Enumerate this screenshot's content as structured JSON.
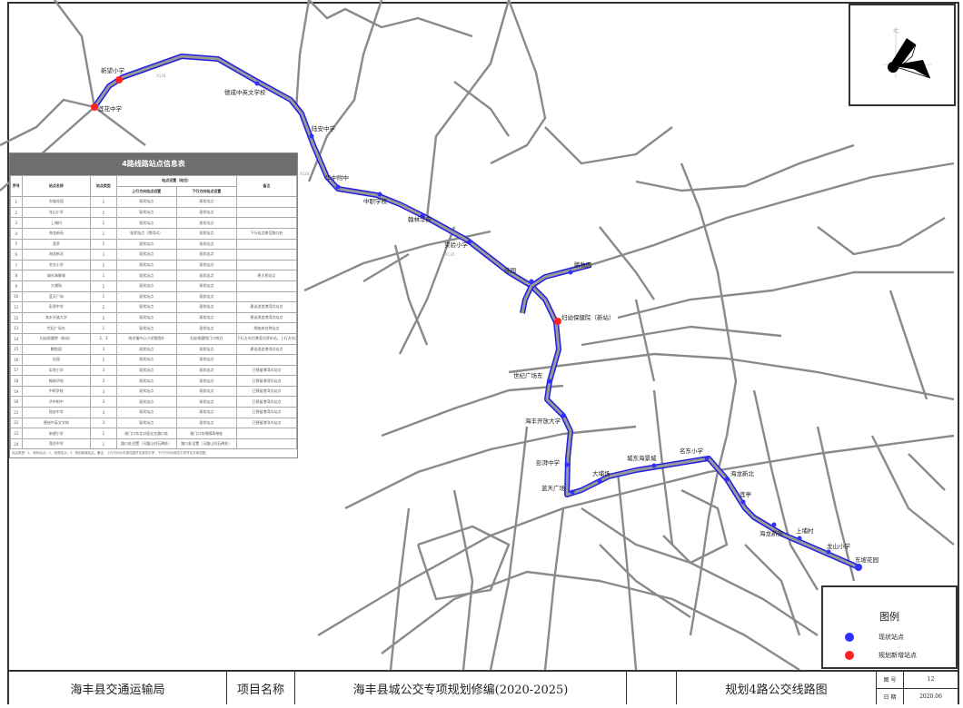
{
  "colors": {
    "route": "#2020e0",
    "existing_stop": "#3030ff",
    "new_stop": "#ff2020",
    "road": "#8a8a8a"
  },
  "compass": {
    "north_label": "北",
    "icon": "north-arrow-icon"
  },
  "table": {
    "title": "4路线路站点信息表",
    "headers": {
      "no": "序号",
      "name": "站点名称",
      "type": "站点类型",
      "setting": "站点设置（站位）",
      "up": "上行方向站点设置",
      "down": "下行方向站点设置",
      "remark": "备注"
    },
    "rows": [
      [
        "1",
        "东坡花园",
        "1",
        "现状站点",
        "现状站点",
        ""
      ],
      [
        "2",
        "龙山小学",
        "1",
        "现状站点",
        "现状站点",
        ""
      ],
      [
        "3",
        "上埔村",
        "1",
        "现状站点",
        "现状站点",
        ""
      ],
      [
        "4",
        "海龙新苑",
        "1",
        "现状站点（港湾式）",
        "现状站点",
        "下行站点移至路口处"
      ],
      [
        "5",
        "莲亭",
        "1",
        "现状站点",
        "现状站点",
        ""
      ],
      [
        "6",
        "海龙新北",
        "1",
        "现状站点",
        "现状站点",
        ""
      ],
      [
        "7",
        "名东小学",
        "1",
        "现状站点",
        "现状站点",
        ""
      ],
      [
        "8",
        "城东海景城",
        "1",
        "现状站点",
        "现状站点",
        "原大桥站点"
      ],
      [
        "9",
        "大埔场",
        "1",
        "现状站点",
        "现状站点",
        ""
      ],
      [
        "10",
        "蓝天广场",
        "1",
        "现状站点",
        "现状站点",
        ""
      ],
      [
        "11",
        "彭湃中学",
        "2",
        "现状站点",
        "现状站点",
        "建议改造港湾式站点"
      ],
      [
        "12",
        "海丰开放大学",
        "2",
        "现状站点",
        "现状站点",
        "建议改造港湾式站点"
      ],
      [
        "13",
        "世纪广场东",
        "1",
        "现状站点",
        "现状站点",
        "将废弃名称站点"
      ],
      [
        "14",
        "妇幼保健院（新站）",
        "2、3",
        "海丰镇中心小学围墙外",
        "妇幼保健院门口附近",
        "下行方向为港湾式停车站，上行方向为直接式停车站"
      ],
      [
        "15",
        "鹏牧园",
        "3",
        "现状站点",
        "现状站点",
        "建议改造港湾式站点"
      ],
      [
        "16",
        "佳园",
        "1",
        "现状站点",
        "现状站点",
        ""
      ],
      [
        "17",
        "实验小学",
        "3",
        "现状站点",
        "现状站点",
        "已预留港湾式站点"
      ],
      [
        "18",
        "翰林华府",
        "3",
        "现状站点",
        "现状站点",
        "已预留港湾式站点"
      ],
      [
        "19",
        "中职学校",
        "3",
        "现状站点",
        "现状站点",
        "已预留港湾式站点"
      ],
      [
        "20",
        "华中附中",
        "3",
        "现状站点",
        "现状站点",
        "已预留港湾式站点"
      ],
      [
        "21",
        "陆安中学",
        "3",
        "现状站点",
        "现状站点",
        "已预留港湾式站点"
      ],
      [
        "22",
        "德成中英文学校",
        "3",
        "现状站点",
        "现状站点",
        "已预留港湾式站点"
      ],
      [
        "23",
        "新望小学",
        "1",
        "校门口东北对面交叉路口处",
        "校门口东侧隔离带处",
        ""
      ],
      [
        "24",
        "莲花中学",
        "1",
        "路口处设置（马路山村石碑处）",
        "路口处设置（马路山村石碑处）",
        ""
      ]
    ],
    "note": "站点类型：1、现状站点；2、改造站点；3、规划新增站点。备注：上行方向为东坡花园开往莲花中学，下行方向为莲花中学开往东坡花园。"
  },
  "stops": [
    "东坡花园",
    "龙山小学",
    "上埔村",
    "海龙新苑",
    "莲亭",
    "海龙新北",
    "名东小学",
    "城东海景城",
    "大埔场",
    "蓝天广场",
    "彭湃中学",
    "海丰开放大学",
    "世纪广场东",
    "妇幼保健院（新站）",
    "鹏牧园",
    "佳园",
    "实验小学",
    "翰林华府",
    "中职学校",
    "华中附中",
    "陆安中学",
    "德成中英文学校",
    "新望小学",
    "莲花中学"
  ],
  "new_stops": [
    "妇幼保健院（新站）",
    "新望小学",
    "莲花中学"
  ],
  "road_labels": [
    "X128",
    "X128",
    "X135"
  ],
  "legend": {
    "title": "图例",
    "items": [
      {
        "label": "现状站点",
        "color": "#3030ff"
      },
      {
        "label": "规划新增站点",
        "color": "#ff2020"
      }
    ]
  },
  "title_block": {
    "agency": "海丰县交通运输局",
    "project_label": "项目名称",
    "project": "海丰县城公交专项规划修编(2020-2025)",
    "drawing": "规划4路公交线路图",
    "number_label": "图 号",
    "number": "12",
    "date_label": "日 期",
    "date": "2020.06"
  }
}
